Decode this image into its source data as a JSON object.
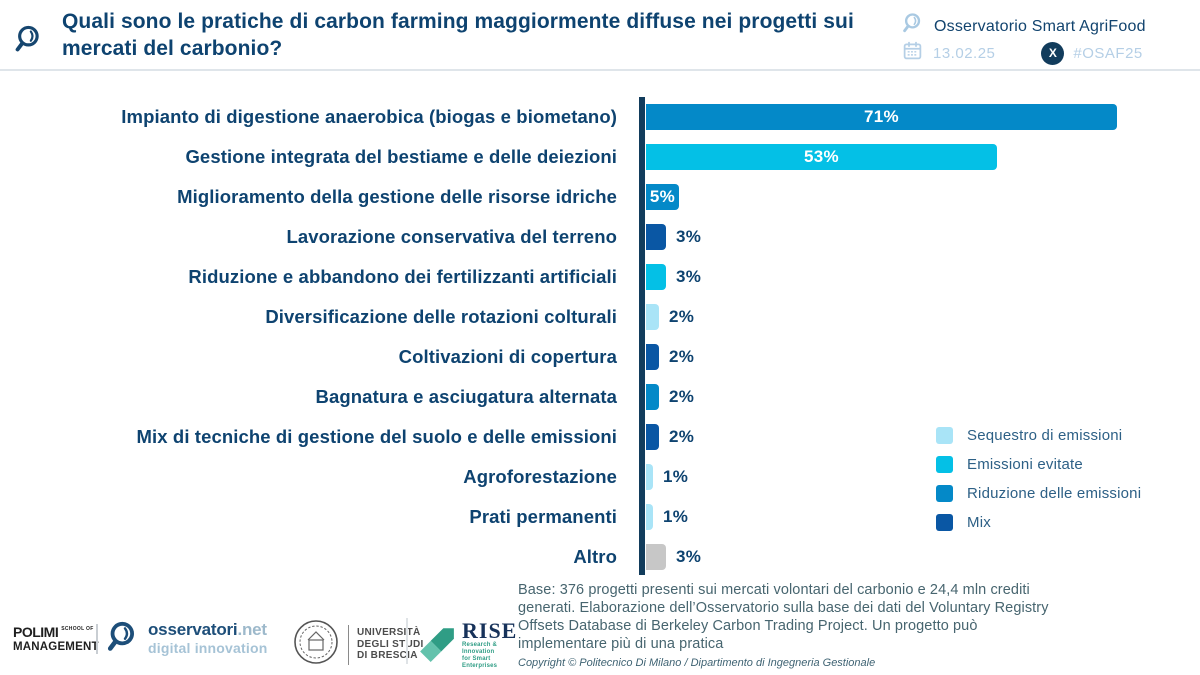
{
  "header": {
    "title": "Quali sono le pratiche di carbon farming maggiormente diffuse nei progetti sui mercati del carbonio?",
    "brand": "Osservatorio Smart AgriFood",
    "date": "13.02.25",
    "hashtag": "#OSAF25"
  },
  "icons": {
    "header_logo": "magnifier-speech-icon",
    "brand_icon": "magnifier-speech-icon",
    "date_icon": "calendar-icon",
    "social_icon": "x-social-icon",
    "social_glyph": "X"
  },
  "chart_data": {
    "type": "bar",
    "orientation": "horizontal",
    "unit": "%",
    "xlim": [
      0,
      75
    ],
    "grid": false,
    "legend_position": "right-middle",
    "bars": [
      {
        "label": "Impianto di digestione anaerobica (biogas e biometano)",
        "value": 71,
        "value_label": "71%",
        "category": "Riduzione delle emissioni",
        "color": "#0489c8"
      },
      {
        "label": "Gestione integrata del bestiame e delle deiezioni",
        "value": 53,
        "value_label": "53%",
        "category": "Emissioni evitate",
        "color": "#04c0e6"
      },
      {
        "label": "Miglioramento della gestione delle risorse idriche",
        "value": 5,
        "value_label": "5%",
        "category": "Riduzione delle emissioni",
        "color": "#0489c8"
      },
      {
        "label": "Lavorazione conservativa del terreno",
        "value": 3,
        "value_label": "3%",
        "category": "Mix",
        "color": "#0a57a4"
      },
      {
        "label": "Riduzione e abbandono dei fertilizzanti artificiali",
        "value": 3,
        "value_label": "3%",
        "category": "Emissioni evitate",
        "color": "#04c0e6"
      },
      {
        "label": "Diversificazione delle rotazioni colturali",
        "value": 2,
        "value_label": "2%",
        "category": "Sequestro di emissioni",
        "color": "#a9e4f7"
      },
      {
        "label": "Coltivazioni di copertura",
        "value": 2,
        "value_label": "2%",
        "category": "Mix",
        "color": "#0a57a4"
      },
      {
        "label": "Bagnatura e asciugatura alternata",
        "value": 2,
        "value_label": "2%",
        "category": "Riduzione delle emissioni",
        "color": "#0489c8"
      },
      {
        "label": "Mix di tecniche di gestione del suolo e delle emissioni",
        "value": 2,
        "value_label": "2%",
        "category": "Mix",
        "color": "#0a57a4"
      },
      {
        "label": "Agroforestazione",
        "value": 1,
        "value_label": "1%",
        "category": "Sequestro di emissioni",
        "color": "#a9e4f7"
      },
      {
        "label": "Prati permanenti",
        "value": 1,
        "value_label": "1%",
        "category": "Sequestro di emissioni",
        "color": "#a9e4f7"
      },
      {
        "label": "Altro",
        "value": 3,
        "value_label": "3%",
        "category": "Altro",
        "color": "#c7c7c7"
      }
    ],
    "legend": [
      {
        "label": "Sequestro di emissioni",
        "color": "#a9e4f7"
      },
      {
        "label": "Emissioni evitate",
        "color": "#04c0e6"
      },
      {
        "label": "Riduzione delle emissioni",
        "color": "#0489c8"
      },
      {
        "label": "Mix",
        "color": "#0a57a4"
      }
    ]
  },
  "footnote": {
    "base": "Base: 376 progetti presenti sui mercati volontari del carbonio e 24,4 mln crediti generati. Elaborazione dell’Osservatorio sulla base dei dati del Voluntary Registry Offsets Database di Berkeley Carbon Trading Project. Un progetto può implementare più di una pratica",
    "copyright": "Copyright © Politecnico Di Milano / Dipartimento di Ingegneria Gestionale"
  },
  "footer": {
    "polimi": {
      "name": "POLIMI",
      "small": "SCHOOL OF",
      "line2": "MANAGEMENT"
    },
    "osservatori": {
      "name": "osservatori",
      "tld": ".net",
      "tagline": "digital innovation"
    },
    "unibs": {
      "lines": [
        "UNIVERSITÀ",
        "DEGLI STUDI",
        "DI BRESCIA"
      ]
    },
    "rise": {
      "name": "RISE",
      "tagline1": "Research & Innovation",
      "tagline2": "for Smart Enterprises"
    }
  },
  "palette": {
    "title_blue": "#0e4370",
    "axis_navy": "#123c5c",
    "bar_blue": "#0489c8",
    "bar_cyan": "#04c0e6",
    "bar_light_cyan": "#a9e4f7",
    "bar_navy": "#0a57a4",
    "bar_gray": "#c7c7c7",
    "meta_light_blue": "#b5cfe6",
    "teal": "#2f9d85"
  }
}
